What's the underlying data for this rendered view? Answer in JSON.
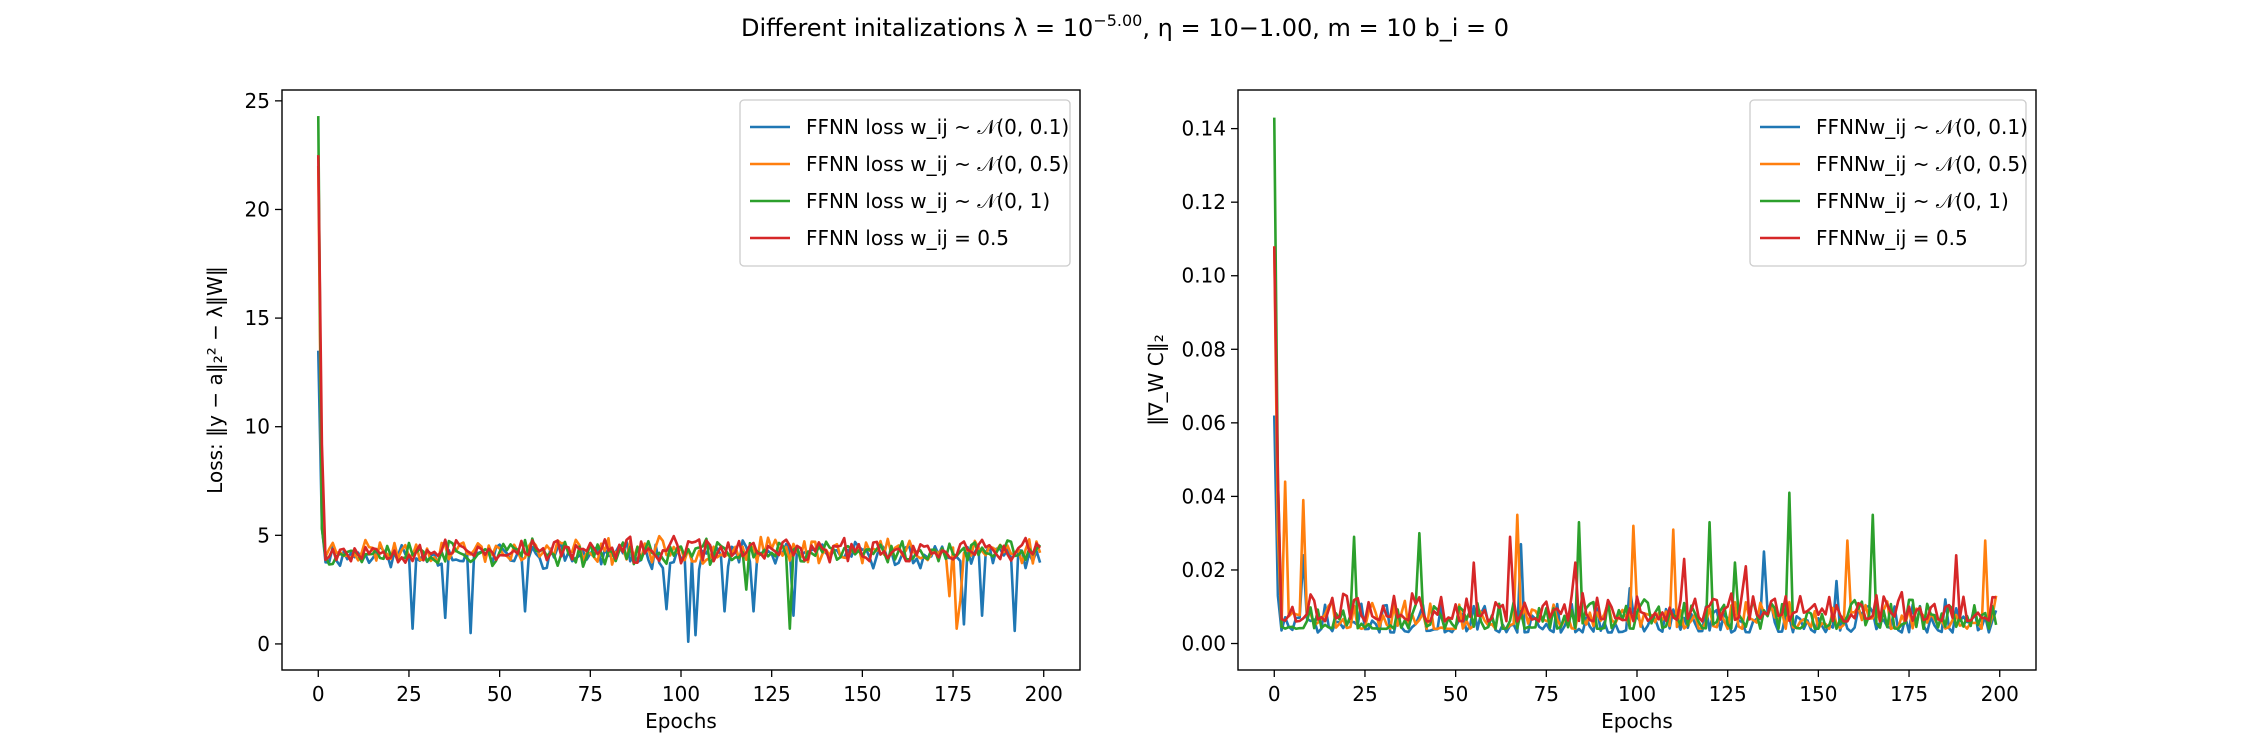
{
  "figure": {
    "suptitle": "Different initalizations λ = 10^−5.00, η = 10−1.00, m = 10  b_i = 0"
  },
  "chart_data": [
    {
      "type": "line",
      "title": "",
      "xlabel": "Epochs",
      "ylabel": "Loss: ‖y − a‖₂² − λ‖W‖",
      "xlim": [
        -10,
        210
      ],
      "ylim": [
        -1.2,
        25.5
      ],
      "xticks": [
        0,
        25,
        50,
        75,
        100,
        125,
        150,
        175,
        200
      ],
      "yticks": [
        0,
        5,
        10,
        15,
        20,
        25
      ],
      "grid": false,
      "legend_position": "top-right",
      "n_points": 200,
      "series": [
        {
          "name": "FFNN loss w_ij ~ 𝒩(0, 0.1)",
          "color": "#1f77b4",
          "start": [
            13.5,
            5.4
          ],
          "level": 4.1,
          "noise": 0.45,
          "seed": 11,
          "dips": [
            [
              26,
              0.7
            ],
            [
              35,
              1.2
            ],
            [
              42,
              0.5
            ],
            [
              57,
              1.5
            ],
            [
              96,
              1.6
            ],
            [
              102,
              0.1
            ],
            [
              104,
              0.4
            ],
            [
              112,
              1.5
            ],
            [
              120,
              1.5
            ],
            [
              131,
              1.3
            ],
            [
              178,
              0.9
            ],
            [
              183,
              1.3
            ],
            [
              192,
              0.6
            ]
          ]
        },
        {
          "name": "FFNN loss w_ij ~ 𝒩(0, 0.5)",
          "color": "#ff7f0e",
          "start": [
            22.0,
            5.4
          ],
          "level": 4.3,
          "noise": 0.45,
          "seed": 23,
          "dips": [
            [
              176,
              0.7
            ],
            [
              174,
              2.2
            ],
            [
              177,
              2.0
            ]
          ]
        },
        {
          "name": "FFNN loss w_ij ~ 𝒩(0, 1)",
          "color": "#2ca02c",
          "start": [
            24.3,
            5.3
          ],
          "level": 4.2,
          "noise": 0.45,
          "seed": 37,
          "dips": [
            [
              130,
              0.7
            ],
            [
              118,
              2.5
            ]
          ]
        },
        {
          "name": "FFNN loss w_ij = 0.5",
          "color": "#d62728",
          "start": [
            22.5,
            9.2
          ],
          "level": 4.3,
          "noise": 0.45,
          "seed": 53,
          "dips": []
        }
      ]
    },
    {
      "type": "line",
      "title": "",
      "xlabel": "Epochs",
      "ylabel": "‖∇_W C‖₂",
      "xlim": [
        -10,
        210
      ],
      "ylim": [
        -0.0072,
        0.1505
      ],
      "xticks": [
        0,
        25,
        50,
        75,
        100,
        125,
        150,
        175,
        200
      ],
      "yticks": [
        0.0,
        0.02,
        0.04,
        0.06,
        0.08,
        0.1,
        0.12,
        0.14
      ],
      "ytick_labels": [
        "0.00",
        "0.02",
        "0.04",
        "0.06",
        "0.08",
        "0.10",
        "0.12",
        "0.14"
      ],
      "grid": false,
      "legend_position": "top-right",
      "n_points": 200,
      "series": [
        {
          "name": "FFNNw_ij ~ 𝒩(0, 0.1)",
          "color": "#1f77b4",
          "start": [
            0.062,
            0.013
          ],
          "level": 0.005,
          "noise": 0.004,
          "seed": 71,
          "spikes": [
            [
              8,
              0.024
            ],
            [
              68,
              0.027
            ],
            [
              98,
              0.015
            ],
            [
              135,
              0.025
            ],
            [
              155,
              0.017
            ],
            [
              185,
              0.012
            ]
          ]
        },
        {
          "name": "FFNNw_ij ~ 𝒩(0, 0.5)",
          "color": "#ff7f0e",
          "start": [
            0.108,
            0.03
          ],
          "level": 0.006,
          "noise": 0.004,
          "seed": 83,
          "spikes": [
            [
              3,
              0.044
            ],
            [
              8,
              0.039
            ],
            [
              67,
              0.035
            ],
            [
              99,
              0.032
            ],
            [
              110,
              0.031
            ],
            [
              158,
              0.028
            ],
            [
              196,
              0.028
            ],
            [
              199,
              0.013
            ]
          ]
        },
        {
          "name": "FFNNw_ij ~ 𝒩(0, 1)",
          "color": "#2ca02c",
          "start": [
            0.143,
            0.045
          ],
          "level": 0.006,
          "noise": 0.004,
          "seed": 97,
          "spikes": [
            [
              22,
              0.029
            ],
            [
              40,
              0.03
            ],
            [
              84,
              0.033
            ],
            [
              120,
              0.033
            ],
            [
              142,
              0.041
            ],
            [
              165,
              0.035
            ],
            [
              127,
              0.022
            ]
          ]
        },
        {
          "name": "FFNNw_ij = 0.5",
          "color": "#d62728",
          "start": [
            0.108,
            0.045
          ],
          "level": 0.008,
          "noise": 0.004,
          "seed": 109,
          "spikes": [
            [
              55,
              0.022
            ],
            [
              65,
              0.029
            ],
            [
              83,
              0.022
            ],
            [
              113,
              0.023
            ],
            [
              130,
              0.021
            ],
            [
              188,
              0.024
            ]
          ]
        }
      ]
    }
  ]
}
